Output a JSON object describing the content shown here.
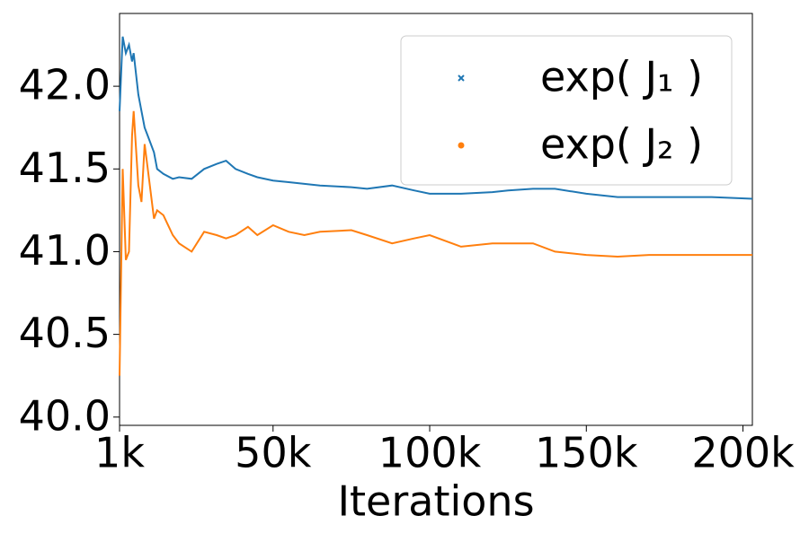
{
  "chart_data": {
    "type": "line",
    "xlabel": "Iterations",
    "x": [
      1000,
      2000,
      3000,
      4000,
      5000,
      5500,
      7000,
      8000,
      9000,
      10000,
      12000,
      13000,
      15000,
      18000,
      20000,
      24000,
      28000,
      32000,
      35000,
      38000,
      42000,
      45000,
      50000,
      55000,
      60000,
      65000,
      75000,
      80000,
      88000,
      95000,
      100000,
      110000,
      120000,
      125000,
      133000,
      140000,
      150000,
      160000,
      170000,
      180000,
      190000,
      203000
    ],
    "series": [
      {
        "name": "exp( J₁ )",
        "color": "#1f77b4",
        "marker": "x",
        "values": [
          41.85,
          42.3,
          42.2,
          42.25,
          42.15,
          42.2,
          41.95,
          41.85,
          41.75,
          41.7,
          41.6,
          41.5,
          41.47,
          41.44,
          41.45,
          41.44,
          41.5,
          41.53,
          41.55,
          41.5,
          41.47,
          41.45,
          41.43,
          41.42,
          41.41,
          41.4,
          41.39,
          41.38,
          41.4,
          41.37,
          41.35,
          41.35,
          41.36,
          41.37,
          41.38,
          41.38,
          41.35,
          41.33,
          41.33,
          41.33,
          41.33,
          41.32
        ]
      },
      {
        "name": "exp( J₂ )",
        "color": "#ff7f0e",
        "marker": "o",
        "values": [
          40.25,
          41.5,
          40.95,
          41.0,
          41.7,
          41.85,
          41.4,
          41.3,
          41.65,
          41.5,
          41.2,
          41.25,
          41.22,
          41.1,
          41.05,
          41.0,
          41.12,
          41.1,
          41.08,
          41.1,
          41.15,
          41.1,
          41.16,
          41.12,
          41.1,
          41.12,
          41.13,
          41.1,
          41.05,
          41.08,
          41.1,
          41.03,
          41.05,
          41.05,
          41.05,
          41.0,
          40.98,
          40.97,
          40.98,
          40.98,
          40.98,
          40.98
        ]
      }
    ],
    "xlim": [
      1000,
      203000
    ],
    "xticks": [
      {
        "value": 1000,
        "label": "1k"
      },
      {
        "value": 50000,
        "label": "50k"
      },
      {
        "value": 100000,
        "label": "100k"
      },
      {
        "value": 150000,
        "label": "150k"
      },
      {
        "value": 200000,
        "label": "200k"
      }
    ],
    "ylim": [
      39.95,
      42.44
    ],
    "yticks": [
      {
        "value": 40.0,
        "label": "40.0"
      },
      {
        "value": 40.5,
        "label": "40.5"
      },
      {
        "value": 41.0,
        "label": "41.0"
      },
      {
        "value": 41.5,
        "label": "41.5"
      },
      {
        "value": 42.0,
        "label": "42.0"
      }
    ],
    "legend": "upper right"
  }
}
